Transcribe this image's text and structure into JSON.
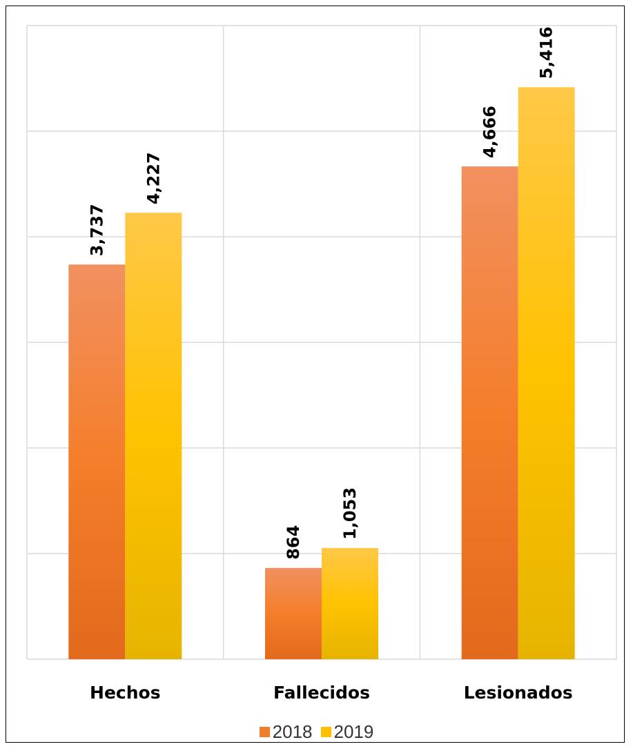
{
  "chart_data": {
    "type": "bar",
    "title": "",
    "xlabel": "",
    "ylabel": "",
    "categories": [
      "Hechos",
      "Fallecidos",
      "Lesionados"
    ],
    "series": [
      {
        "name": "2018",
        "values": [
          3737,
          864,
          4666
        ],
        "labels": [
          "3,737",
          "864",
          "4,666"
        ],
        "color": "#f07d2a"
      },
      {
        "name": "2019",
        "values": [
          4227,
          1053,
          5416
        ],
        "labels": [
          "4,227",
          "1,053",
          "5,416"
        ],
        "color": "#ffc000"
      }
    ],
    "ylim": [
      0,
      6000
    ],
    "grid": true,
    "y_axis_ticks_visible": false,
    "data_labels": true,
    "data_label_orientation": "vertical",
    "legend_position": "bottom"
  }
}
